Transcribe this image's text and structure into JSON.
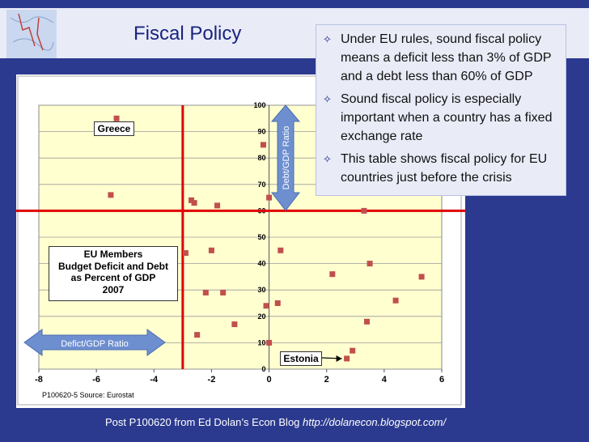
{
  "slide": {
    "title": "Fiscal Policy",
    "bullets": [
      {
        "text": "Under EU rules,  sound fiscal policy means a deficit less than 3% of GDP and a debt less than 60% of GDP",
        "lines": [
          "Under EU rules,  sound fiscal policy",
          "means a deficit less than 3% of GDP",
          "and a debt less than 60% of GDP"
        ],
        "icon": "diamond-star-icon"
      },
      {
        "text": "Sound fiscal policy is especially important when a country has a fixed exchange rate",
        "lines": [
          "Sound fiscal policy is especially",
          "important when a country has a fixed",
          "exchange rate"
        ],
        "icon": "diamond-star-icon"
      },
      {
        "text": "This table shows fiscal policy for EU countries just before the crisis",
        "lines": [
          "This table shows fiscal policy for EU",
          "countries just before the crisis"
        ],
        "icon": "diamond-star-icon"
      }
    ],
    "footer": {
      "text": "Post P100620 from Ed Dolan’s Econ Blog ",
      "url": "http://dolanecon.blogspot.com/"
    },
    "colors": {
      "background": "#2b3a8f",
      "plot_bg": "#ffffd0",
      "marker": "#c0504d",
      "threshold_line": "#e00000",
      "arrow": "#6d8fd0"
    }
  },
  "chart_data": {
    "type": "scatter",
    "title": "EU Members Budget Deficit and Debt as Percent of GDP 2007",
    "title_lines": [
      "EU Members",
      "Budget Deficit and Debt",
      "as Percent of GDP",
      "2007"
    ],
    "source": "P100620-5 Source: Eurostat",
    "xlim": [
      -8,
      6
    ],
    "ylim": [
      0,
      100
    ],
    "xticks": [
      -8,
      -6,
      -4,
      -2,
      0,
      2,
      4,
      6
    ],
    "yticks": [
      0,
      10,
      20,
      30,
      40,
      50,
      60,
      70,
      80,
      90,
      100
    ],
    "grid": "horizontal",
    "thresholds": {
      "deficit_x": -3,
      "debt_y": 60
    },
    "x_arrow_label": "Defict/GDP Ratio",
    "y_arrow_label": "Debt/GDP Ratio",
    "annotations": [
      {
        "label": "Greece",
        "x": -5.3,
        "y": 95
      },
      {
        "label": "Estonia",
        "x": 2.7,
        "y": 4
      }
    ],
    "points": [
      {
        "x": -5.3,
        "y": 95
      },
      {
        "x": -5.5,
        "y": 66
      },
      {
        "x": -2.7,
        "y": 64
      },
      {
        "x": -2.6,
        "y": 63
      },
      {
        "x": -1.8,
        "y": 62
      },
      {
        "x": -2.9,
        "y": 44
      },
      {
        "x": -2.0,
        "y": 45
      },
      {
        "x": -2.2,
        "y": 29
      },
      {
        "x": -1.6,
        "y": 29
      },
      {
        "x": -2.5,
        "y": 13
      },
      {
        "x": -1.2,
        "y": 17
      },
      {
        "x": -0.2,
        "y": 85
      },
      {
        "x": 0.0,
        "y": 65
      },
      {
        "x": 0.4,
        "y": 45
      },
      {
        "x": 0.3,
        "y": 25
      },
      {
        "x": -0.1,
        "y": 24
      },
      {
        "x": 0.0,
        "y": 10
      },
      {
        "x": 2.2,
        "y": 36
      },
      {
        "x": 3.3,
        "y": 60
      },
      {
        "x": 3.5,
        "y": 40
      },
      {
        "x": 3.4,
        "y": 18
      },
      {
        "x": 4.4,
        "y": 26
      },
      {
        "x": 5.3,
        "y": 35
      },
      {
        "x": 2.9,
        "y": 7
      },
      {
        "x": 2.7,
        "y": 4
      }
    ]
  }
}
